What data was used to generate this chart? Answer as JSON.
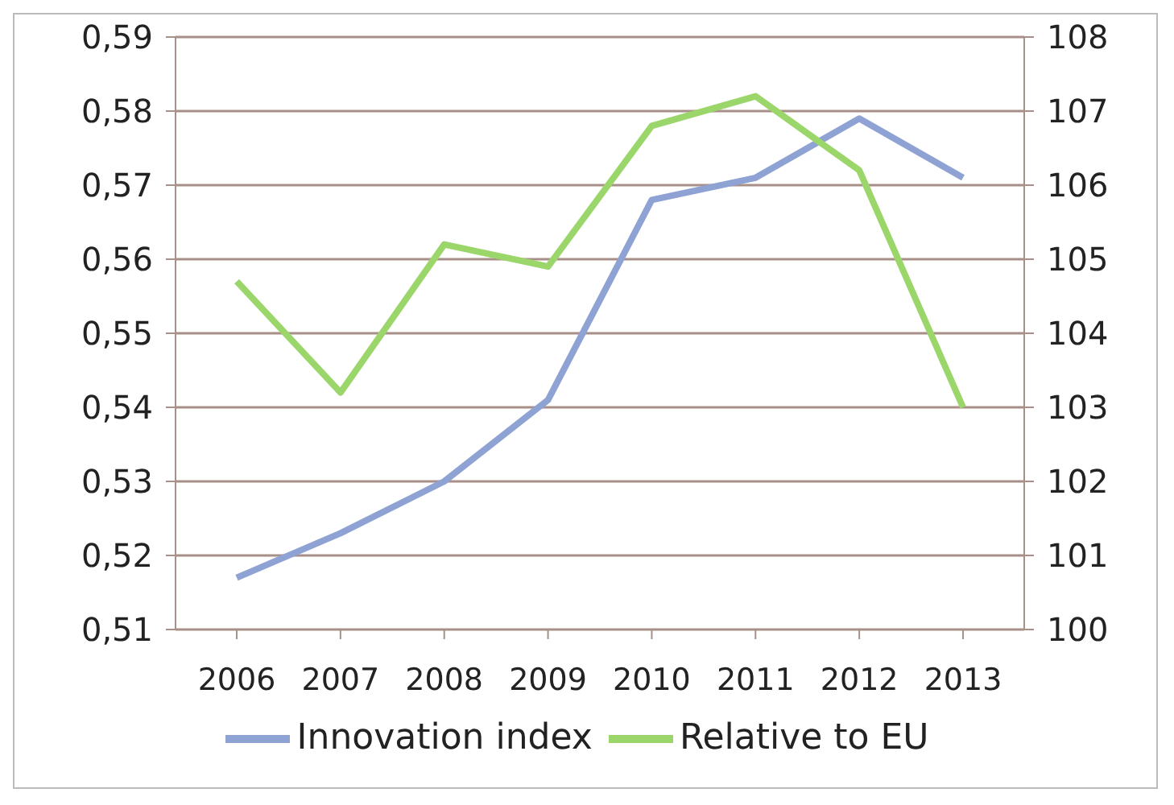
{
  "chart_data": {
    "type": "line",
    "categories": [
      "2006",
      "2007",
      "2008",
      "2009",
      "2010",
      "2011",
      "2012",
      "2013"
    ],
    "series": [
      {
        "name": "Innovation index",
        "color": "#8fa2d4",
        "values": [
          0.517,
          0.523,
          0.53,
          0.541,
          0.568,
          0.571,
          0.579,
          0.571
        ]
      },
      {
        "name": "Relative to EU",
        "color": "#9bd66b",
        "axis": "y2",
        "values": [
          104.7,
          103.2,
          105.2,
          104.9,
          106.8,
          107.2,
          106.2,
          103.0
        ]
      }
    ],
    "ylim": [
      0.51,
      0.59
    ],
    "yticks": [
      {
        "value": 0.51,
        "label": "0,51"
      },
      {
        "value": 0.52,
        "label": "0,52"
      },
      {
        "value": 0.53,
        "label": "0,53"
      },
      {
        "value": 0.54,
        "label": "0,54"
      },
      {
        "value": 0.55,
        "label": "0,55"
      },
      {
        "value": 0.56,
        "label": "0,56"
      },
      {
        "value": 0.57,
        "label": "0,57"
      },
      {
        "value": 0.58,
        "label": "0,58"
      },
      {
        "value": 0.59,
        "label": "0,59"
      }
    ],
    "y2lim": [
      100,
      108
    ],
    "y2ticks": [
      100,
      101,
      102,
      103,
      104,
      105,
      106,
      107,
      108
    ],
    "grid": "y",
    "legend": "bottom",
    "marker": "none",
    "line_style": "solid"
  }
}
